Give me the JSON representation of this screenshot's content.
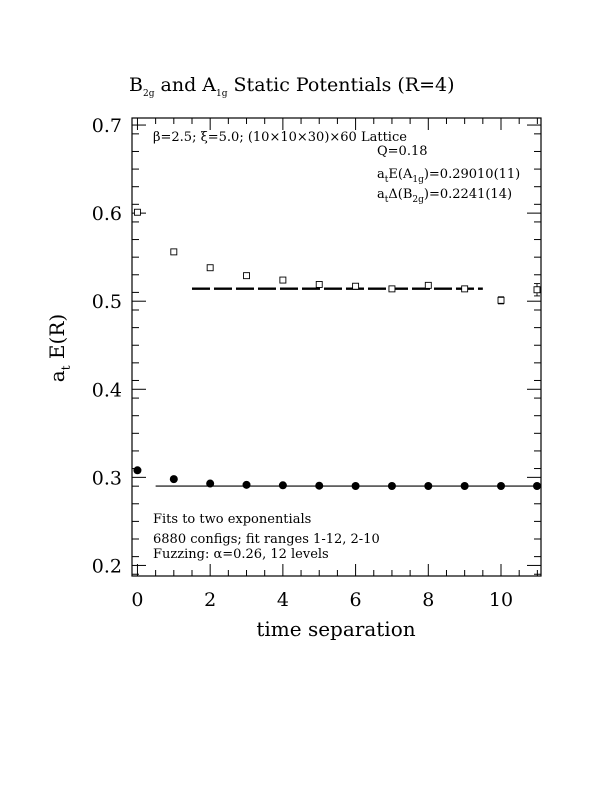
{
  "chart_data": {
    "type": "scatter",
    "title": {
      "main_a": "B",
      "sub_a": "2g",
      "mid": " and A",
      "sub_b": "1g",
      "tail": " Static Potentials (R=4)"
    },
    "xlabel": "time separation",
    "ylabel": {
      "main": "a",
      "sub": "t",
      "tail": " E(R)"
    },
    "xlim": [
      -0.15,
      11.1
    ],
    "ylim": [
      0.188,
      0.708
    ],
    "x_ticks": [
      0,
      2,
      4,
      6,
      8,
      10
    ],
    "y_ticks": [
      0.2,
      0.3,
      0.4,
      0.5,
      0.6,
      0.7
    ],
    "y_tick_labels": [
      "0.2",
      "0.3",
      "0.4",
      "0.5",
      "0.6",
      "0.7"
    ],
    "annotations": {
      "lattice": "β=2.5; ξ=5.0; (10×10×30)×60 Lattice",
      "q": "Q=0.18",
      "energy_a": {
        "main": "a",
        "sub1": "t",
        "mid": "E(A",
        "sub2": "1g",
        "tail": ")=0.29010(11)"
      },
      "energy_b": {
        "main": "a",
        "sub1": "t",
        "mid": "Δ(B",
        "sub2": "2g",
        "tail": ")=0.2241(14)"
      },
      "fits": "Fits to two exponentials",
      "configs": "6880 configs; fit ranges 1-12, 2-10",
      "fuzzing": "Fuzzing: α=0.26, 12 levels"
    },
    "series": [
      {
        "marker": "open-square",
        "x": [
          0,
          1,
          2,
          3,
          4,
          5,
          6,
          7,
          8,
          9,
          10,
          11
        ],
        "y": [
          0.601,
          0.556,
          0.538,
          0.529,
          0.524,
          0.519,
          0.517,
          0.514,
          0.518,
          0.514,
          0.501,
          0.513
        ],
        "err": [
          0.001,
          0.001,
          0.001,
          0.001,
          0.001,
          0.001,
          0.002,
          0.002,
          0.003,
          0.003,
          0.004,
          0.007
        ]
      },
      {
        "marker": "filled-circle",
        "x": [
          0,
          1,
          2,
          3,
          4,
          5,
          6,
          7,
          8,
          9,
          10,
          11
        ],
        "y": [
          0.308,
          0.298,
          0.293,
          0.2915,
          0.291,
          0.2905,
          0.2902,
          0.2902,
          0.2902,
          0.2902,
          0.2902,
          0.2902
        ],
        "err": [
          0,
          0,
          0,
          0,
          0,
          0,
          0,
          0,
          0,
          0,
          0,
          0
        ]
      }
    ],
    "fit_lines": [
      {
        "style": "dashed",
        "x": [
          1.5,
          9.5
        ],
        "y": 0.5142
      },
      {
        "style": "solid",
        "x": [
          0.5,
          11.1
        ],
        "y": 0.2901
      }
    ]
  }
}
